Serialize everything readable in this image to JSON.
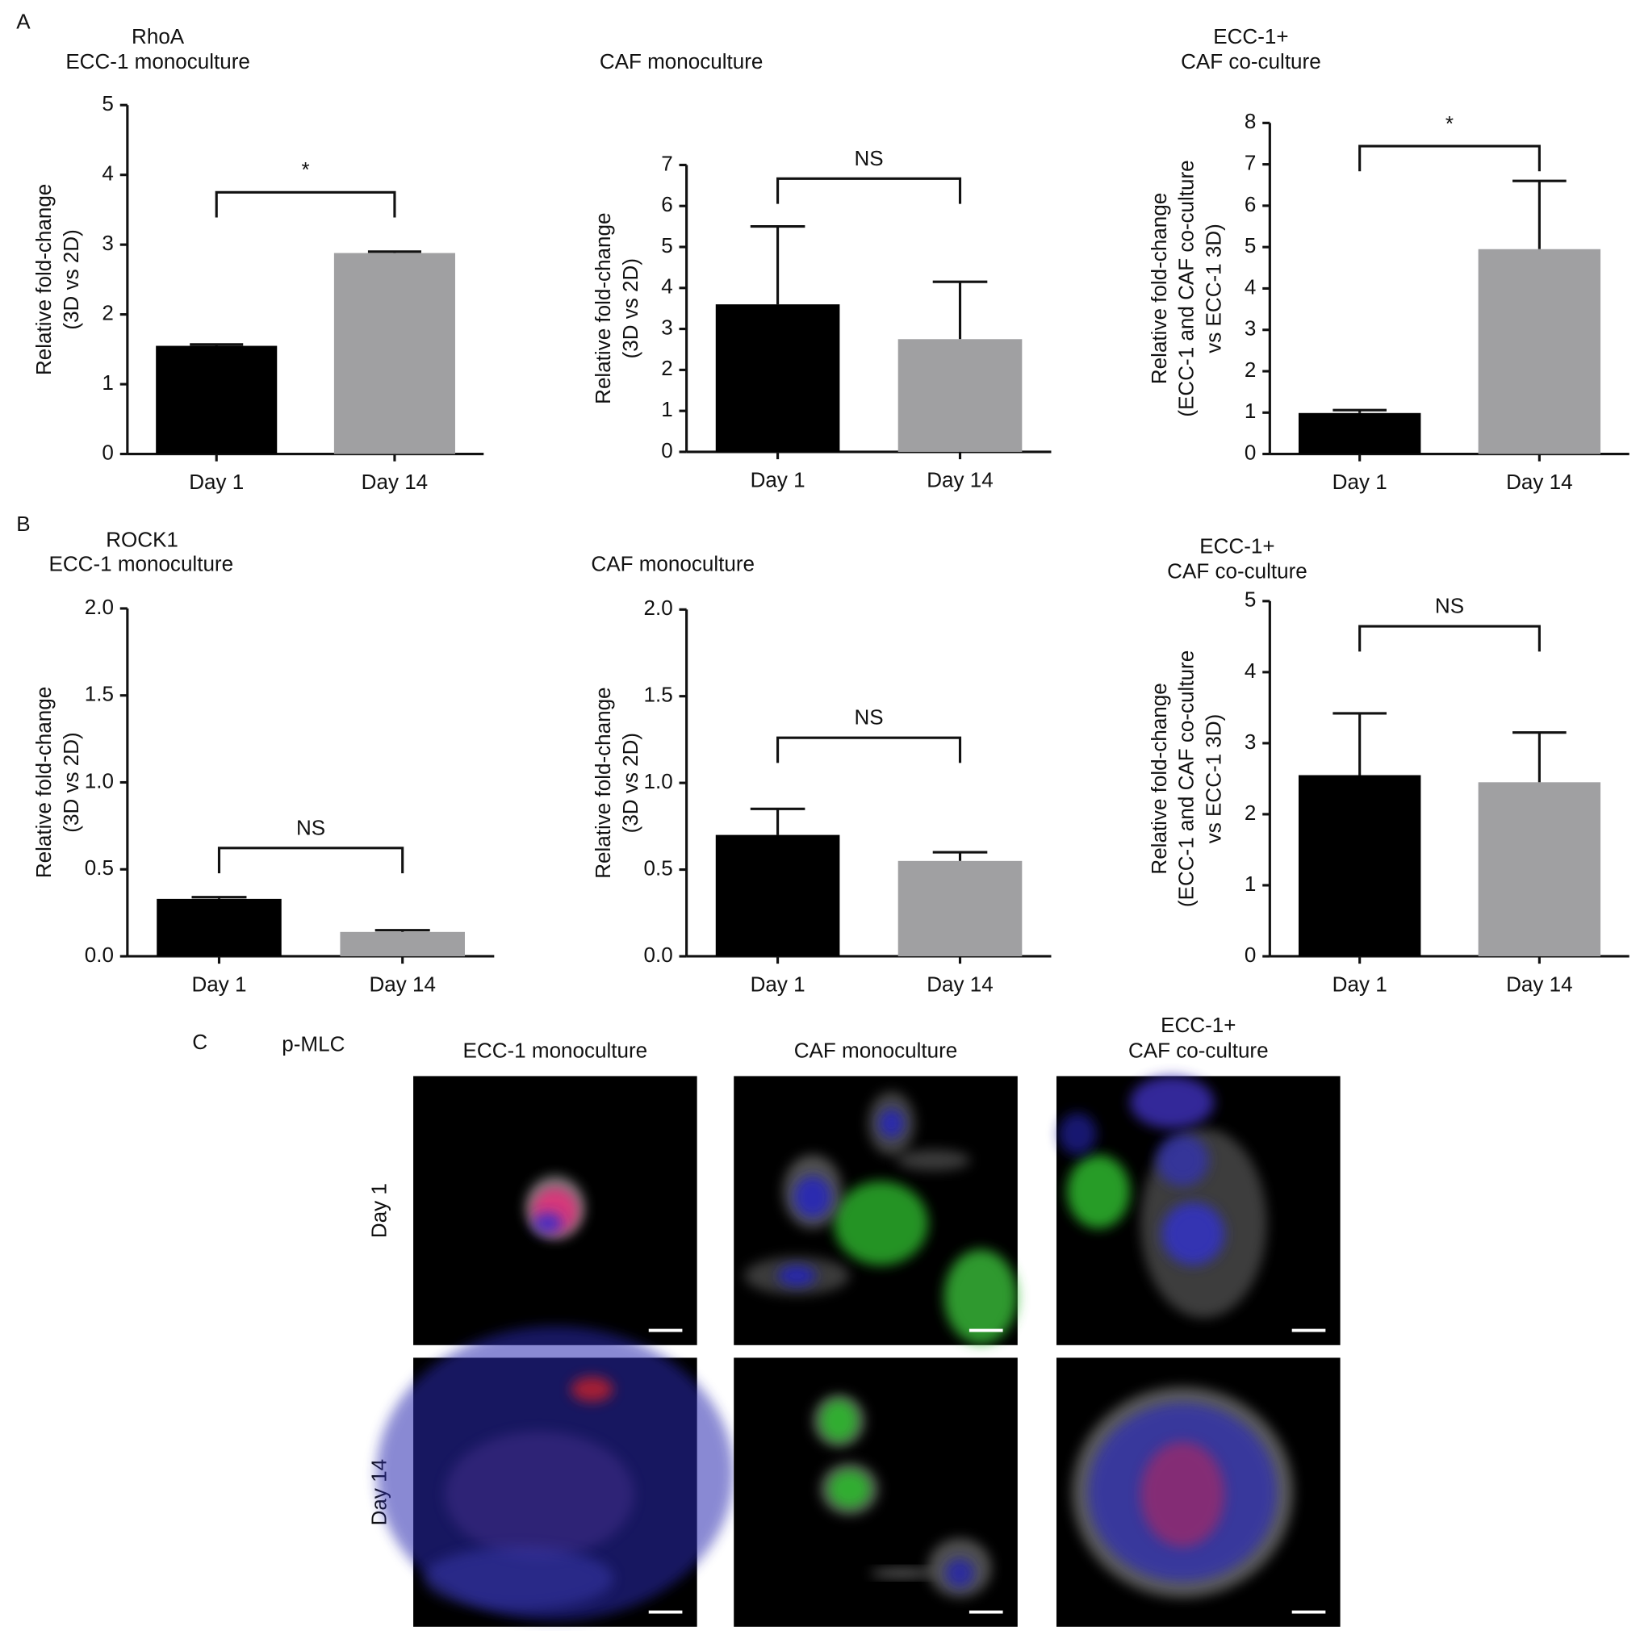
{
  "panels": [
    {
      "label": "A",
      "gene": "RhoA"
    },
    {
      "label": "B",
      "gene": "ROCK1"
    }
  ],
  "figure_c": {
    "label": "C",
    "stain": "p-MLC",
    "columns": [
      [
        "ECC-1 monoculture"
      ],
      [
        "CAF monoculture"
      ],
      [
        "ECC-1+",
        "CAF co-culture"
      ]
    ],
    "rows": [
      "Day 1",
      "Day 14"
    ]
  },
  "chart_data": [
    {
      "type": "bar",
      "title": [
        "ECC-1 monoculture"
      ],
      "ylabel": [
        "Relative fold-change",
        "(3D vs 2D)"
      ],
      "categories": [
        "Day 1",
        "Day 14"
      ],
      "values": [
        1.55,
        2.88
      ],
      "errors": [
        0.02,
        0.02
      ],
      "colors": [
        "#000000",
        "#a0a0a2"
      ],
      "ylim": [
        0,
        5
      ],
      "yticks": [
        0,
        1,
        2,
        3,
        4,
        5
      ],
      "significance": "*"
    },
    {
      "type": "bar",
      "title": [
        "CAF monoculture"
      ],
      "ylabel": [
        "Relative fold-change",
        "(3D vs 2D)"
      ],
      "categories": [
        "Day 1",
        "Day 14"
      ],
      "values": [
        3.6,
        2.75
      ],
      "errors": [
        1.9,
        1.4
      ],
      "colors": [
        "#000000",
        "#a0a0a2"
      ],
      "ylim": [
        0,
        7
      ],
      "yticks": [
        0,
        1,
        2,
        3,
        4,
        5,
        6,
        7
      ],
      "significance": "NS"
    },
    {
      "type": "bar",
      "title": [
        "ECC-1+",
        "CAF co-culture"
      ],
      "ylabel": [
        "Relative fold-change",
        "(ECC-1 and CAF co-culture",
        "vs ECC-1 3D)"
      ],
      "categories": [
        "Day 1",
        "Day 14"
      ],
      "values": [
        0.99,
        4.95
      ],
      "errors": [
        0.07,
        1.65
      ],
      "colors": [
        "#000000",
        "#a0a0a2"
      ],
      "ylim": [
        0,
        8
      ],
      "yticks": [
        0,
        1,
        2,
        3,
        4,
        5,
        6,
        7,
        8
      ],
      "significance": "*"
    },
    {
      "type": "bar",
      "title": [
        "ECC-1 monoculture"
      ],
      "ylabel": [
        "Relative fold-change",
        "(3D vs 2D)"
      ],
      "categories": [
        "Day 1",
        "Day 14"
      ],
      "values": [
        0.33,
        0.14
      ],
      "errors": [
        0.01,
        0.01
      ],
      "colors": [
        "#000000",
        "#a0a0a2"
      ],
      "ylim": [
        0,
        2
      ],
      "yticks": [
        {
          "value": 0,
          "label": "0.0"
        },
        0.5,
        {
          "value": 1,
          "label": "1.0"
        },
        1.5,
        {
          "value": 2,
          "label": "2.0"
        }
      ],
      "significance": "NS"
    },
    {
      "type": "bar",
      "title": [
        "CAF monoculture"
      ],
      "ylabel": [
        "Relative fold-change",
        "(3D vs 2D)"
      ],
      "categories": [
        "Day 1",
        "Day 14"
      ],
      "values": [
        0.7,
        0.55
      ],
      "errors": [
        0.15,
        0.05
      ],
      "colors": [
        "#000000",
        "#a0a0a2"
      ],
      "ylim": [
        0,
        2
      ],
      "yticks": [
        {
          "value": 0,
          "label": "0.0"
        },
        0.5,
        {
          "value": 1,
          "label": "1.0"
        },
        1.5,
        {
          "value": 2,
          "label": "2.0"
        }
      ],
      "significance": "NS"
    },
    {
      "type": "bar",
      "title": [
        "ECC-1+",
        "CAF co-culture"
      ],
      "ylabel": [
        "Relative fold-change",
        "(ECC-1 and CAF co-culture",
        "vs ECC-1 3D)"
      ],
      "categories": [
        "Day 1",
        "Day 14"
      ],
      "values": [
        2.55,
        2.45
      ],
      "errors": [
        0.87,
        0.7
      ],
      "colors": [
        "#000000",
        "#a0a0a2"
      ],
      "ylim": [
        0,
        5
      ],
      "yticks": [
        0,
        1,
        2,
        3,
        4,
        5
      ],
      "significance": "NS"
    }
  ]
}
